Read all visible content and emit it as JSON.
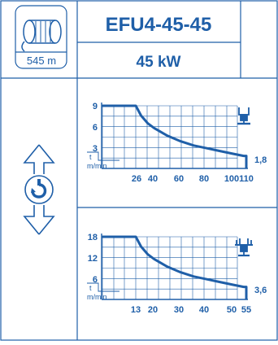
{
  "header": {
    "model": "EFU4-45-45",
    "power": "45 kW",
    "rope_length": "545 m"
  },
  "colors": {
    "primary": "#1f5fa8",
    "background": "#ffffff"
  },
  "icons": {
    "drum": "cable-drum-icon",
    "hook": "hook-up-down-icon",
    "single_fall": "single-fall-hook-icon",
    "double_fall": "double-fall-hook-icon"
  },
  "chart_data": [
    {
      "type": "line",
      "y_unit": "t",
      "x_unit": "m/min",
      "y_ticks": [
        "9",
        "6",
        "3"
      ],
      "x_ticks": [
        "26",
        "40",
        "60",
        "80",
        "100",
        "110"
      ],
      "end_label": "1,8",
      "ylim": [
        0,
        9
      ],
      "xlim": [
        0,
        110
      ],
      "x": [
        0,
        26,
        30,
        35,
        40,
        50,
        60,
        70,
        80,
        90,
        100,
        108,
        110,
        110
      ],
      "y": [
        9,
        9,
        7.6,
        6.5,
        5.8,
        4.7,
        3.9,
        3.3,
        2.9,
        2.5,
        2.1,
        1.8,
        1.8,
        0
      ]
    },
    {
      "type": "line",
      "y_unit": "t",
      "x_unit": "m/min",
      "y_ticks": [
        "18",
        "12",
        "6"
      ],
      "x_ticks": [
        "13",
        "20",
        "30",
        "40",
        "50",
        "55"
      ],
      "end_label": "3,6",
      "ylim": [
        0,
        18
      ],
      "xlim": [
        0,
        55
      ],
      "x": [
        0,
        13,
        15,
        17.5,
        20,
        25,
        30,
        35,
        40,
        45,
        50,
        54,
        55,
        55
      ],
      "y": [
        18,
        18,
        15.2,
        13,
        11.6,
        9.4,
        7.8,
        6.6,
        5.8,
        5,
        4.2,
        3.6,
        3.6,
        0
      ]
    }
  ]
}
